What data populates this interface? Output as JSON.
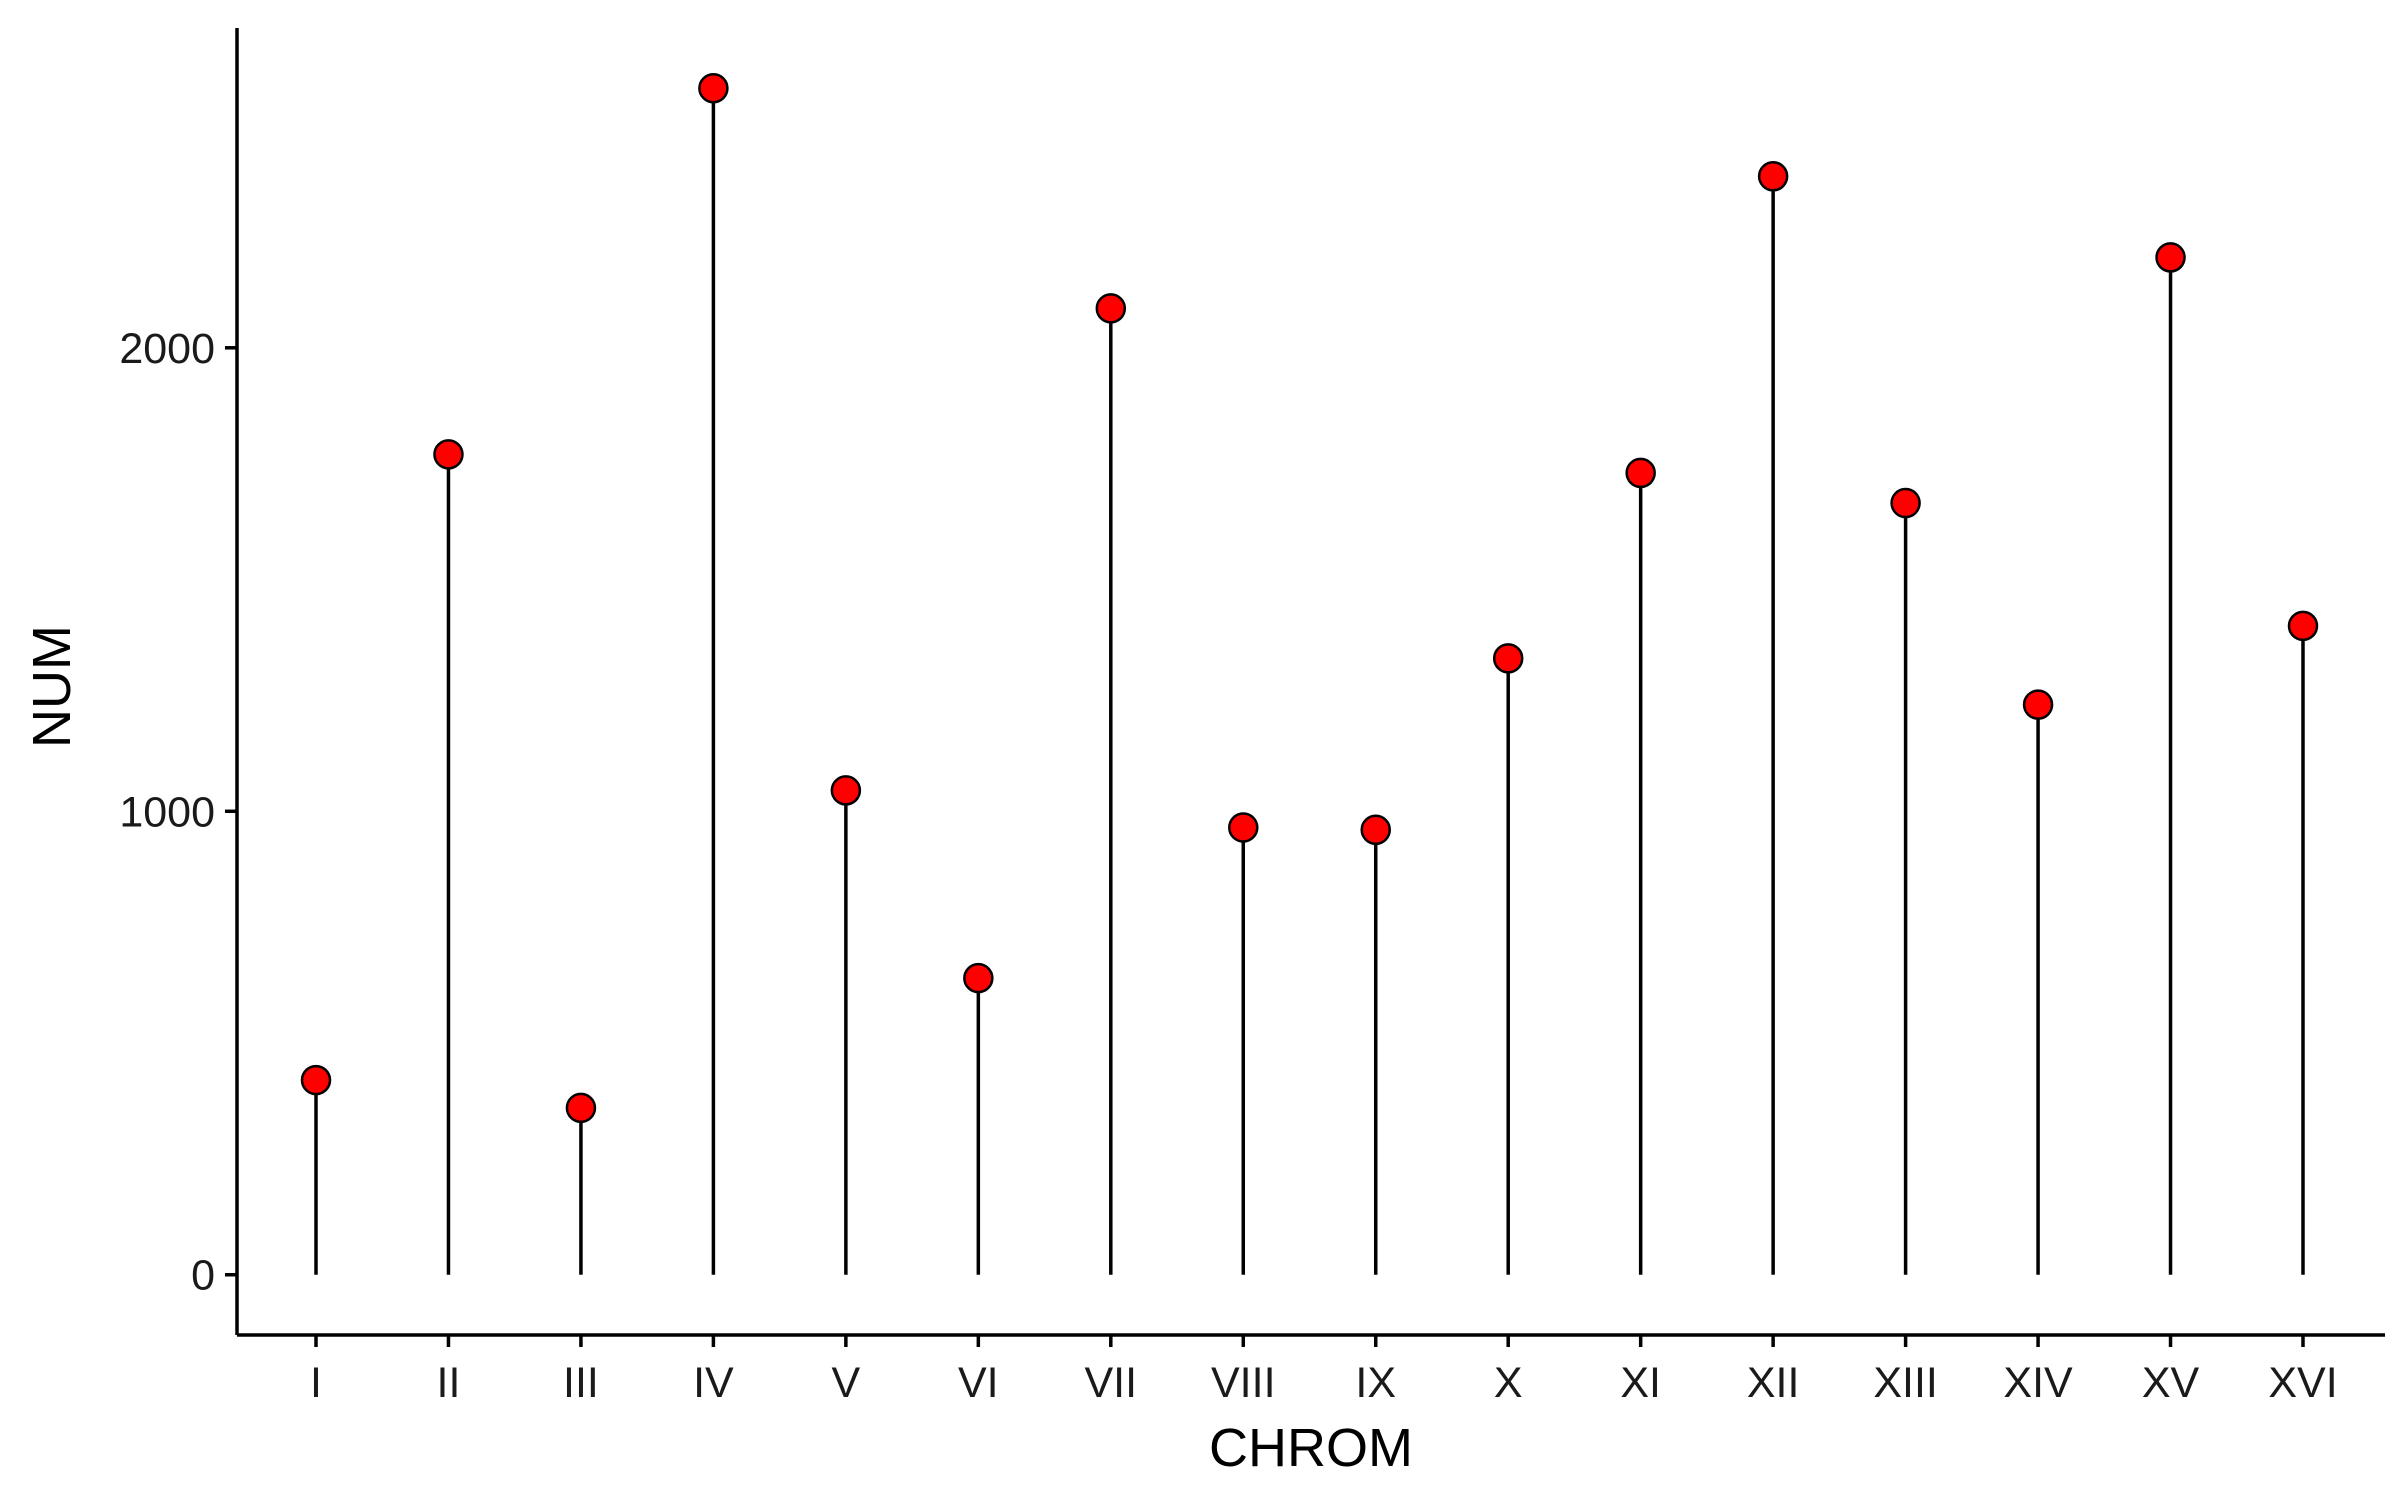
{
  "chart_data": {
    "type": "lollipop",
    "title": "",
    "xlabel": "CHROM",
    "ylabel": "NUM",
    "categories": [
      "I",
      "II",
      "III",
      "IV",
      "V",
      "VI",
      "VII",
      "VIII",
      "IX",
      "X",
      "XI",
      "XII",
      "XIII",
      "XIV",
      "XV",
      "XVI"
    ],
    "values": [
      420,
      1770,
      360,
      2560,
      1045,
      640,
      2085,
      965,
      960,
      1330,
      1730,
      2370,
      1665,
      1230,
      2195,
      1400
    ],
    "yticks": [
      0,
      1000,
      2000
    ],
    "ylim": [
      -130,
      2690
    ],
    "grid": false,
    "legend": "none",
    "colors": {
      "point_fill": "#ff0000",
      "point_stroke": "#000000",
      "stem": "#000000",
      "axis": "#000000"
    }
  }
}
